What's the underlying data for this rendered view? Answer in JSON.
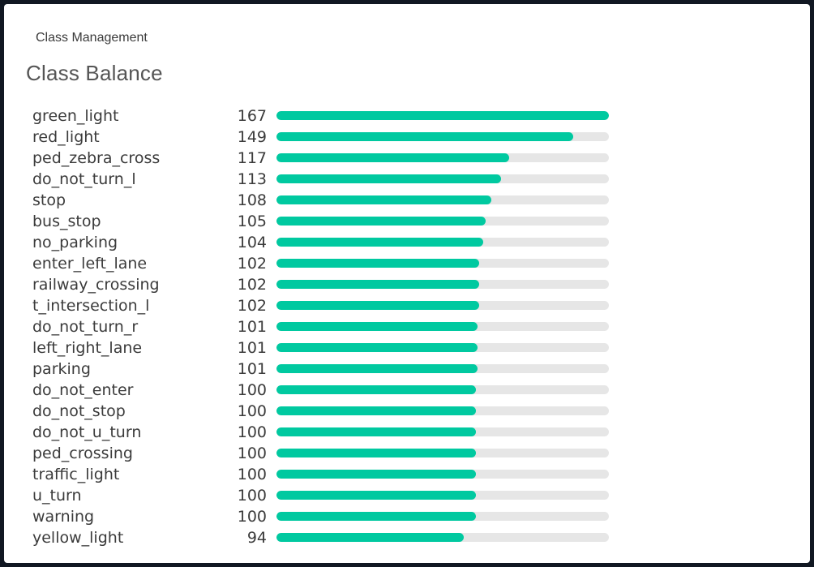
{
  "header": {
    "section_label": "Class Management",
    "title": "Class Balance"
  },
  "colors": {
    "bar_fill": "#00c9a0",
    "bar_track": "#e6e6e6"
  },
  "chart_data": {
    "type": "bar",
    "orientation": "horizontal",
    "title": "Class Balance",
    "categories": [
      "green_light",
      "red_light",
      "ped_zebra_cross",
      "do_not_turn_l",
      "stop",
      "bus_stop",
      "no_parking",
      "enter_left_lane",
      "railway_crossing",
      "t_intersection_l",
      "do_not_turn_r",
      "left_right_lane",
      "parking",
      "do_not_enter",
      "do_not_stop",
      "do_not_u_turn",
      "ped_crossing",
      "traffic_light",
      "u_turn",
      "warning",
      "yellow_light"
    ],
    "values": [
      167,
      149,
      117,
      113,
      108,
      105,
      104,
      102,
      102,
      102,
      101,
      101,
      101,
      100,
      100,
      100,
      100,
      100,
      100,
      100,
      94
    ],
    "xlim": [
      0,
      167
    ],
    "grid": false,
    "legend": "none"
  }
}
